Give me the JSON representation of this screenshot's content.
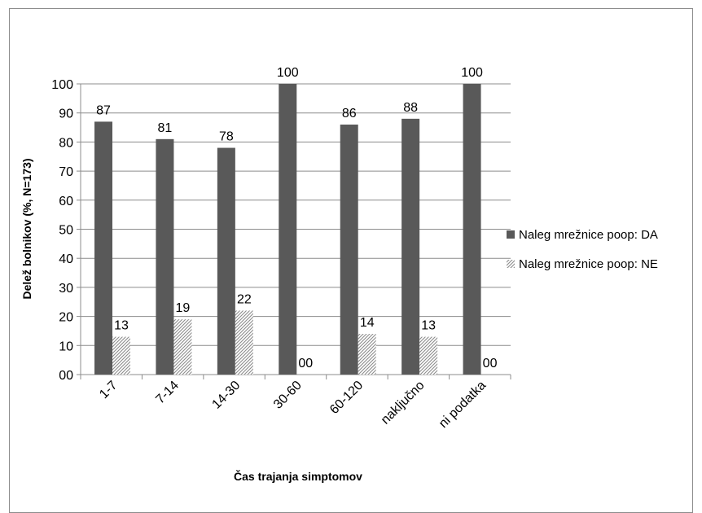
{
  "chart_data": {
    "type": "bar",
    "title": "",
    "xlabel": "Čas trajanja simptomov",
    "ylabel": "Delež bolnikov (%, N=173)",
    "ylim": [
      0,
      100
    ],
    "yticks": [
      "00",
      "10",
      "20",
      "30",
      "40",
      "50",
      "60",
      "70",
      "80",
      "90",
      "100"
    ],
    "categories": [
      "1-7",
      "7-14",
      "14-30",
      "30-60",
      "60-120",
      "naključno",
      "ni podatka"
    ],
    "series": [
      {
        "name": "Naleg mrežnice poop: DA",
        "values": [
          87,
          81,
          78,
          100,
          86,
          88,
          100
        ],
        "labels": [
          "87",
          "81",
          "78",
          "100",
          "86",
          "88",
          "100"
        ],
        "color": "#595959",
        "pattern": "solid"
      },
      {
        "name": "Naleg mrežnice poop: NE",
        "values": [
          13,
          19,
          22,
          0,
          14,
          13,
          0
        ],
        "labels": [
          "13",
          "19",
          "22",
          "00",
          "14",
          "13",
          "00"
        ],
        "color": "#a6a6a6",
        "pattern": "diagonal-hatch"
      }
    ],
    "grid": true,
    "legend_position": "right"
  }
}
